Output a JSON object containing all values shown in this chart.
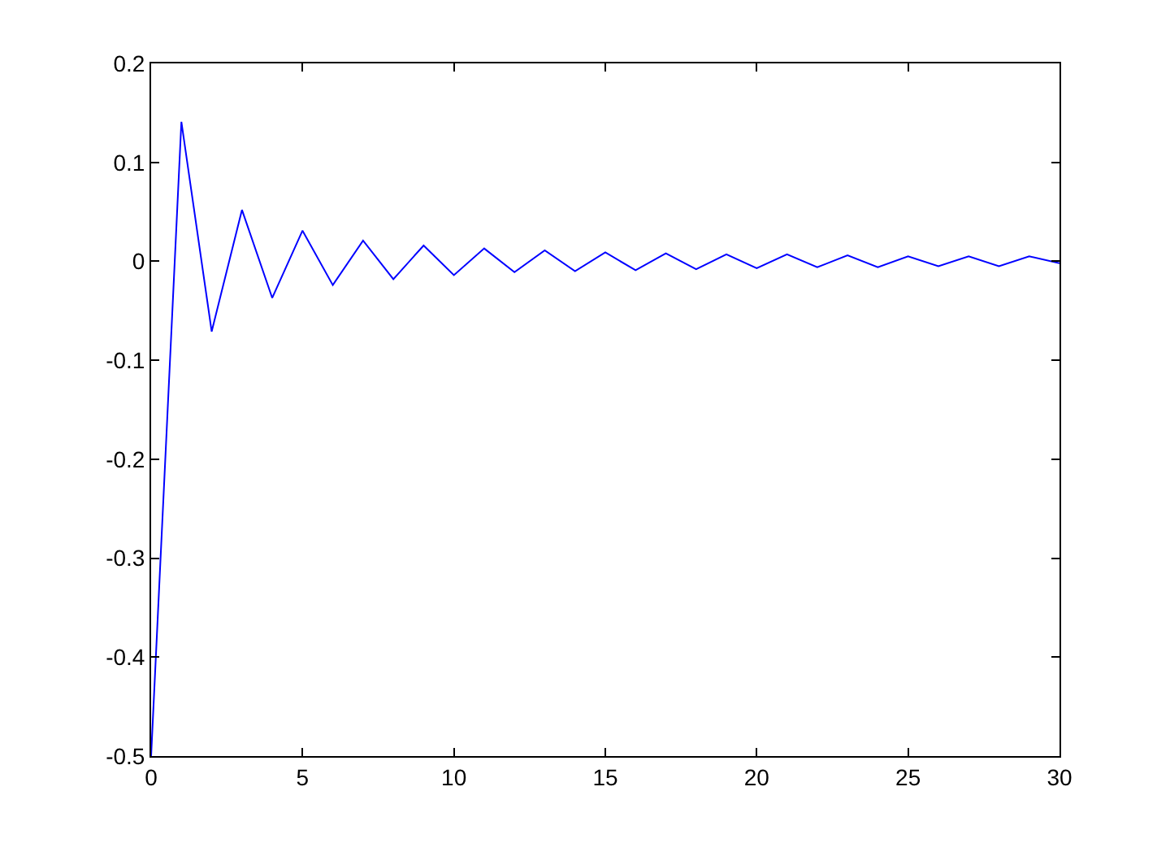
{
  "chart_data": {
    "type": "line",
    "x": [
      0,
      1,
      2,
      3,
      4,
      5,
      6,
      7,
      8,
      9,
      10,
      11,
      12,
      13,
      14,
      15,
      16,
      17,
      18,
      19,
      20,
      21,
      22,
      23,
      24,
      25,
      26,
      27,
      28,
      29,
      30
    ],
    "series": [
      {
        "color": "#0000ff",
        "values": [
          -0.5,
          0.141,
          -0.071,
          0.052,
          -0.037,
          0.031,
          -0.024,
          0.021,
          -0.018,
          0.016,
          -0.014,
          0.013,
          -0.011,
          0.011,
          -0.01,
          0.009,
          -0.009,
          0.008,
          -0.008,
          0.007,
          -0.007,
          0.007,
          -0.006,
          0.006,
          -0.006,
          0.005,
          -0.005,
          0.005,
          -0.005,
          0.005,
          -0.002
        ]
      }
    ],
    "xlim": [
      0,
      30
    ],
    "xticks": [
      0,
      5,
      10,
      15,
      20,
      25,
      30
    ],
    "ylim": [
      -0.5,
      0.2
    ],
    "yticks": [
      -0.5,
      -0.4,
      -0.3,
      -0.2,
      -0.1,
      0,
      0.1,
      0.2
    ],
    "legend": false,
    "marker": "none",
    "line_style": "solid"
  }
}
